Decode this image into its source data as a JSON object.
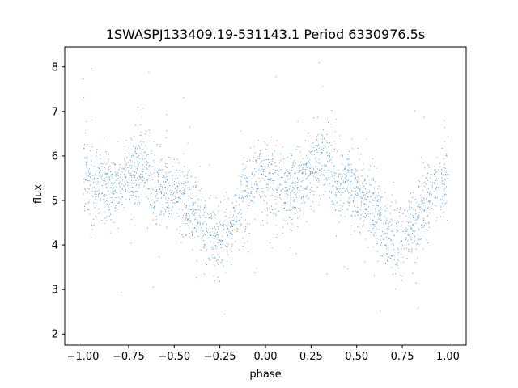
{
  "chart_data": {
    "type": "scatter",
    "title": "1SWASPJ133409.19-531143.1 Period 6330976.5s",
    "xlabel": "phase",
    "ylabel": "flux",
    "xlim": [
      -1.1,
      1.1
    ],
    "ylim": [
      1.75,
      8.45
    ],
    "xticks": [
      -1.0,
      -0.75,
      -0.5,
      -0.25,
      0.0,
      0.25,
      0.5,
      0.75,
      1.0
    ],
    "xtick_labels": [
      "−1.00",
      "−0.75",
      "−0.50",
      "−0.25",
      "0.00",
      "0.25",
      "0.50",
      "0.75",
      "1.00"
    ],
    "yticks": [
      2,
      3,
      4,
      5,
      6,
      7,
      8
    ],
    "ytick_labels": [
      "2",
      "3",
      "4",
      "5",
      "6",
      "7",
      "8"
    ],
    "grid": false,
    "marker_color": "#1f77b4",
    "phase_folded": true,
    "mean_curve": {
      "phase": [
        0.0,
        0.05,
        0.1,
        0.15,
        0.2,
        0.25,
        0.3,
        0.35,
        0.4,
        0.45,
        0.5,
        0.55,
        0.6,
        0.65,
        0.7,
        0.75,
        0.8,
        0.85,
        0.9,
        0.95,
        1.0
      ],
      "flux": [
        5.5,
        5.4,
        5.3,
        5.3,
        5.4,
        5.6,
        5.9,
        5.7,
        5.4,
        5.3,
        5.2,
        5.0,
        4.7,
        4.4,
        4.2,
        4.1,
        4.4,
        4.8,
        5.2,
        5.5,
        5.5
      ]
    },
    "scatter_spread": 0.45
  }
}
